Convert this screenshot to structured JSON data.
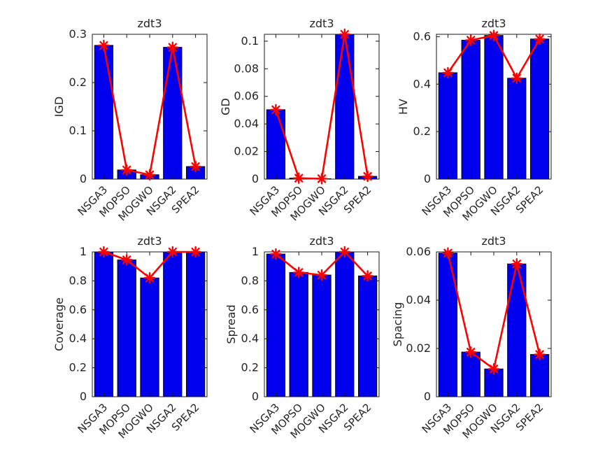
{
  "figure": {
    "background": "#ffffff"
  },
  "colors": {
    "bar_fill": "#0000ee",
    "bar_edge": "#000000",
    "line": "#ff0000",
    "marker": "#ff0000",
    "axis": "#1a1a1a",
    "text": "#262626"
  },
  "chart_data": [
    {
      "type": "bar",
      "overlay": "line-asterisk",
      "title": "zdt3",
      "ylabel": "IGD",
      "xlabel": "",
      "categories": [
        "NSGA3",
        "MOPSO",
        "MOGWO",
        "NSGA2",
        "SPEA2"
      ],
      "values": [
        0.277,
        0.019,
        0.009,
        0.273,
        0.026
      ],
      "ylim": [
        0,
        0.3
      ],
      "ytick_values": [
        0,
        0.1,
        0.2,
        0.3
      ],
      "ytick_labels": [
        "0",
        "0.1",
        "0.2",
        "0.3"
      ],
      "grid": false,
      "legend": false
    },
    {
      "type": "bar",
      "overlay": "line-asterisk",
      "title": "zdt3",
      "ylabel": "GD",
      "xlabel": "",
      "categories": [
        "NSGA3",
        "MOPSO",
        "MOGWO",
        "NSGA2",
        "SPEA2"
      ],
      "values": [
        0.0503,
        0.0007,
        0.0003,
        0.105,
        0.002
      ],
      "ylim": [
        0,
        0.105
      ],
      "ytick_values": [
        0,
        0.02,
        0.04,
        0.06,
        0.08,
        0.1
      ],
      "ytick_labels": [
        "0",
        "0.02",
        "0.04",
        "0.06",
        "0.08",
        "0.1"
      ],
      "grid": false,
      "legend": false
    },
    {
      "type": "bar",
      "overlay": "line-asterisk",
      "title": "zdt3",
      "ylabel": "HV",
      "xlabel": "",
      "categories": [
        "NSGA3",
        "MOPSO",
        "MOGWO",
        "NSGA2",
        "SPEA2"
      ],
      "values": [
        0.448,
        0.585,
        0.605,
        0.425,
        0.59
      ],
      "ylim": [
        0,
        0.61
      ],
      "ytick_values": [
        0,
        0.2,
        0.4,
        0.6
      ],
      "ytick_labels": [
        "0",
        "0.2",
        "0.4",
        "0.6"
      ],
      "grid": false,
      "legend": false
    },
    {
      "type": "bar",
      "overlay": "line-asterisk",
      "title": "zdt3",
      "ylabel": "Coverage",
      "xlabel": "",
      "categories": [
        "NSGA3",
        "MOPSO",
        "MOGWO",
        "NSGA2",
        "SPEA2"
      ],
      "values": [
        1.0,
        0.945,
        0.82,
        1.0,
        1.0
      ],
      "ylim": [
        0,
        1
      ],
      "ytick_values": [
        0,
        0.2,
        0.4,
        0.6,
        0.8,
        1
      ],
      "ytick_labels": [
        "0",
        "0.2",
        "0.4",
        "0.6",
        "0.8",
        "1"
      ],
      "grid": false,
      "legend": false
    },
    {
      "type": "bar",
      "overlay": "line-asterisk",
      "title": "zdt3",
      "ylabel": "Spread",
      "xlabel": "",
      "categories": [
        "NSGA3",
        "MOPSO",
        "MOGWO",
        "NSGA2",
        "SPEA2"
      ],
      "values": [
        0.985,
        0.858,
        0.84,
        1.0,
        0.834
      ],
      "ylim": [
        0,
        1
      ],
      "ytick_values": [
        0,
        0.2,
        0.4,
        0.6,
        0.8,
        1
      ],
      "ytick_labels": [
        "0",
        "0.2",
        "0.4",
        "0.6",
        "0.8",
        "1"
      ],
      "grid": false,
      "legend": false
    },
    {
      "type": "bar",
      "overlay": "line-asterisk",
      "title": "zdt3",
      "ylabel": "Spacing",
      "xlabel": "",
      "categories": [
        "NSGA3",
        "MOPSO",
        "MOGWO",
        "NSGA2",
        "SPEA2"
      ],
      "values": [
        0.0595,
        0.0185,
        0.0115,
        0.055,
        0.0175
      ],
      "ylim": [
        0,
        0.06
      ],
      "ytick_values": [
        0,
        0.02,
        0.04,
        0.06
      ],
      "ytick_labels": [
        "0",
        "0.02",
        "0.04",
        "0.06"
      ],
      "grid": false,
      "legend": false
    }
  ]
}
